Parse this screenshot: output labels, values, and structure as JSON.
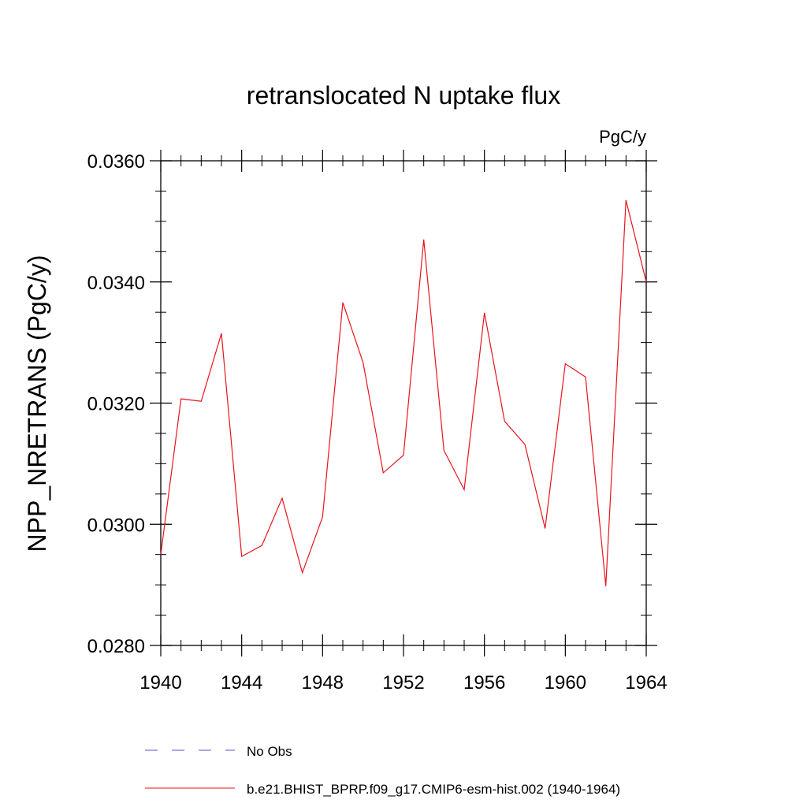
{
  "chart_data": {
    "type": "line",
    "title": "retranslocated N uptake flux",
    "units_label": "PgC/y",
    "ylabel": "NPP_NRETRANS  (PgC/y)",
    "xlabel": "",
    "xlim": [
      1940,
      1964
    ],
    "ylim": [
      0.028,
      0.036
    ],
    "x_ticks": [
      1940,
      1944,
      1948,
      1952,
      1956,
      1960,
      1964
    ],
    "x_tick_labels": [
      "1940",
      "1944",
      "1948",
      "1952",
      "1956",
      "1960",
      "1964"
    ],
    "y_ticks": [
      0.028,
      0.03,
      0.032,
      0.034,
      0.036
    ],
    "y_tick_labels": [
      "0.0280",
      "0.0300",
      "0.0320",
      "0.0340",
      "0.0360"
    ],
    "y_minor_step": 0.0005,
    "x_minor_step": 1,
    "grid": false,
    "legend_position": "bottom",
    "series": [
      {
        "name": "b.e21.BHIST_BPRP.f09_g17.CMIP6-esm-hist.002 (1940-1964)",
        "color": "#e8141c",
        "style": "solid",
        "x": [
          1940,
          1941,
          1942,
          1943,
          1944,
          1945,
          1946,
          1947,
          1948,
          1949,
          1950,
          1951,
          1952,
          1953,
          1954,
          1955,
          1956,
          1957,
          1958,
          1959,
          1960,
          1961,
          1962,
          1963,
          1964
        ],
        "values": [
          0.0295,
          0.03207,
          0.03203,
          0.03315,
          0.02947,
          0.02965,
          0.03043,
          0.0292,
          0.03012,
          0.03366,
          0.03267,
          0.03085,
          0.03114,
          0.0347,
          0.03122,
          0.03057,
          0.03349,
          0.0317,
          0.03132,
          0.02993,
          0.03265,
          0.03243,
          0.02898,
          0.03535,
          0.034
        ]
      }
    ],
    "legend": [
      {
        "label": "No Obs",
        "color": "#5a4fcf",
        "style": "dashed"
      },
      {
        "label": "b.e21.BHIST_BPRP.f09_g17.CMIP6-esm-hist.002 (1940-1964)",
        "color": "#e8141c",
        "style": "solid"
      }
    ]
  }
}
